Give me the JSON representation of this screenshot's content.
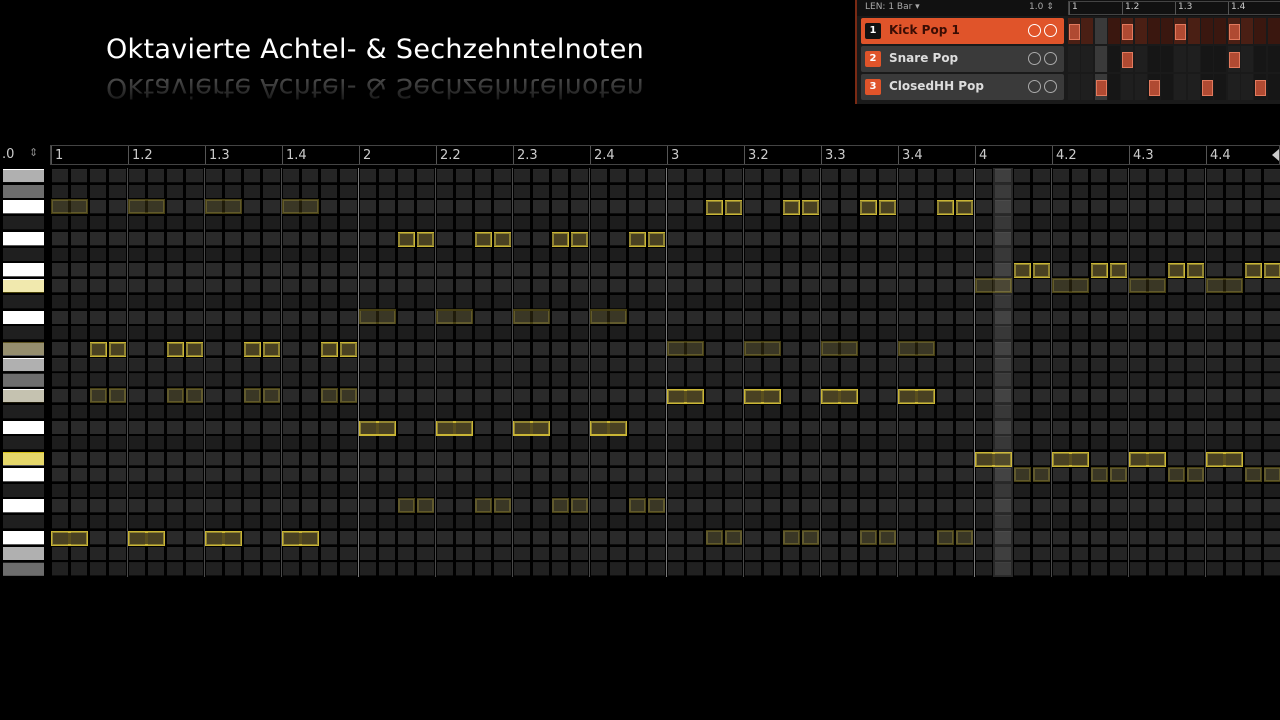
{
  "title": "Oktavierte Achtel- & Sechzehntelnoten",
  "colors": {
    "accent": "#e0542a",
    "note_fill": "#5a4f1e",
    "note_border": "#c9b535",
    "selected_key": "#d8c21a",
    "active_key": "#5c5220"
  },
  "pattern_panel": {
    "length_label": "LEN: 1 Bar",
    "zoom_value": "1.0",
    "ruler": [
      "1",
      "1.2",
      "1.3",
      "1.4"
    ],
    "tracks": [
      {
        "number": "1",
        "name": "Kick Pop 1",
        "selected": true,
        "steps": [
          0,
          4,
          8,
          12
        ]
      },
      {
        "number": "2",
        "name": "Snare Pop",
        "selected": false,
        "steps": [
          4,
          12
        ]
      },
      {
        "number": "3",
        "name": "ClosedHH Pop",
        "selected": false,
        "steps": [
          2,
          6,
          10,
          14
        ]
      }
    ]
  },
  "piano_roll": {
    "zoom_value": ".0",
    "ruler": [
      "1",
      "1.2",
      "1.3",
      "1.4",
      "2",
      "2.2",
      "2.3",
      "2.4",
      "3",
      "3.2",
      "3.3",
      "3.4",
      "4",
      "4.2",
      "4.3",
      "4.4"
    ],
    "rows": 26,
    "steps_per_beat": 4,
    "white_key_rows": [
      0,
      2,
      4,
      6,
      7,
      9,
      11,
      12,
      14,
      16,
      18,
      19,
      21,
      23,
      24
    ],
    "active_key_row": 11,
    "selected_key_row": 18,
    "highlighted_step": 49,
    "notes": [
      {
        "row": 23,
        "start": 0,
        "length": 2
      },
      {
        "row": 23,
        "start": 4,
        "length": 2
      },
      {
        "row": 23,
        "start": 8,
        "length": 2
      },
      {
        "row": 23,
        "start": 12,
        "length": 2
      },
      {
        "row": 11,
        "start": 2,
        "length": 1
      },
      {
        "row": 11,
        "start": 3,
        "length": 1
      },
      {
        "row": 11,
        "start": 6,
        "length": 1
      },
      {
        "row": 11,
        "start": 7,
        "length": 1
      },
      {
        "row": 11,
        "start": 10,
        "length": 1
      },
      {
        "row": 11,
        "start": 11,
        "length": 1
      },
      {
        "row": 11,
        "start": 14,
        "length": 1
      },
      {
        "row": 11,
        "start": 15,
        "length": 1
      },
      {
        "row": 16,
        "start": 16,
        "length": 2
      },
      {
        "row": 16,
        "start": 20,
        "length": 2
      },
      {
        "row": 16,
        "start": 24,
        "length": 2
      },
      {
        "row": 16,
        "start": 28,
        "length": 2
      },
      {
        "row": 4,
        "start": 18,
        "length": 1
      },
      {
        "row": 4,
        "start": 19,
        "length": 1
      },
      {
        "row": 4,
        "start": 22,
        "length": 1
      },
      {
        "row": 4,
        "start": 23,
        "length": 1
      },
      {
        "row": 4,
        "start": 26,
        "length": 1
      },
      {
        "row": 4,
        "start": 27,
        "length": 1
      },
      {
        "row": 4,
        "start": 30,
        "length": 1
      },
      {
        "row": 4,
        "start": 31,
        "length": 1
      },
      {
        "row": 14,
        "start": 32,
        "length": 2
      },
      {
        "row": 14,
        "start": 36,
        "length": 2
      },
      {
        "row": 14,
        "start": 40,
        "length": 2
      },
      {
        "row": 14,
        "start": 44,
        "length": 2
      },
      {
        "row": 2,
        "start": 34,
        "length": 1
      },
      {
        "row": 2,
        "start": 35,
        "length": 1
      },
      {
        "row": 2,
        "start": 38,
        "length": 1
      },
      {
        "row": 2,
        "start": 39,
        "length": 1
      },
      {
        "row": 2,
        "start": 42,
        "length": 1
      },
      {
        "row": 2,
        "start": 43,
        "length": 1
      },
      {
        "row": 2,
        "start": 46,
        "length": 1
      },
      {
        "row": 2,
        "start": 47,
        "length": 1
      },
      {
        "row": 18,
        "start": 48,
        "length": 2
      },
      {
        "row": 18,
        "start": 52,
        "length": 2
      },
      {
        "row": 18,
        "start": 56,
        "length": 2
      },
      {
        "row": 18,
        "start": 60,
        "length": 2
      },
      {
        "row": 6,
        "start": 50,
        "length": 1
      },
      {
        "row": 6,
        "start": 51,
        "length": 1
      },
      {
        "row": 6,
        "start": 54,
        "length": 1
      },
      {
        "row": 6,
        "start": 55,
        "length": 1
      },
      {
        "row": 6,
        "start": 58,
        "length": 1
      },
      {
        "row": 6,
        "start": 59,
        "length": 1
      },
      {
        "row": 6,
        "start": 62,
        "length": 1
      },
      {
        "row": 6,
        "start": 63,
        "length": 1
      }
    ]
  }
}
